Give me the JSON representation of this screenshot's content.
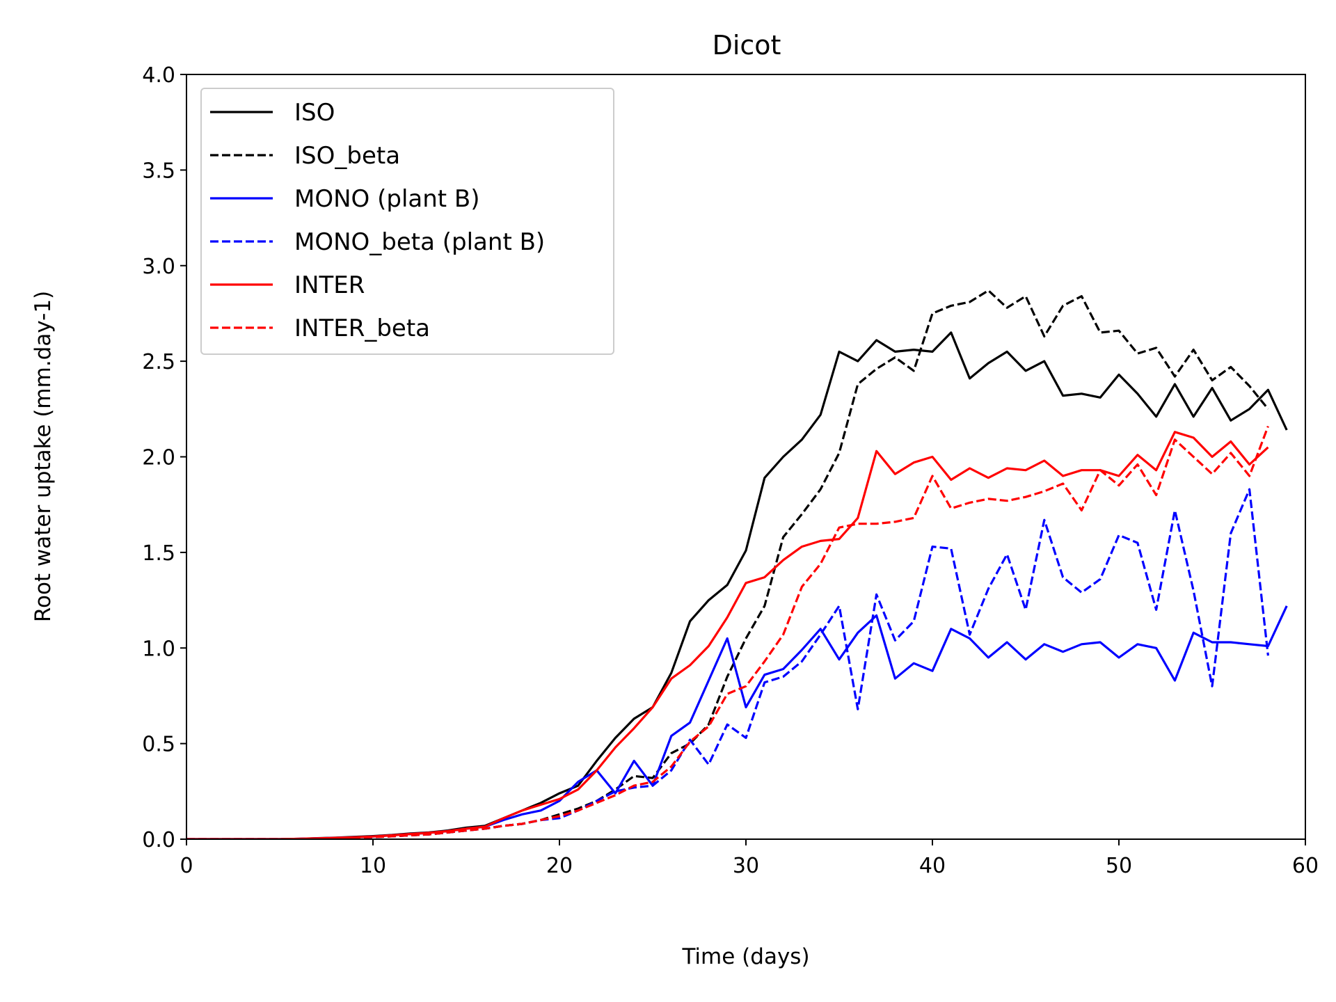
{
  "chart_data": {
    "type": "line",
    "title": "Dicot",
    "xlabel": "Time (days)",
    "ylabel": "Root water uptake (mm.day-1)",
    "xlim": [
      0,
      60
    ],
    "ylim": [
      0,
      4.0
    ],
    "xticks": [
      0,
      10,
      20,
      30,
      40,
      50,
      60
    ],
    "xtick_labels": [
      "0",
      "10",
      "20",
      "30",
      "40",
      "50",
      "60"
    ],
    "yticks": [
      0,
      0.5,
      1.0,
      1.5,
      2.0,
      2.5,
      3.0,
      3.5,
      4.0
    ],
    "ytick_labels": [
      "0.0",
      "0.5",
      "1.0",
      "1.5",
      "2.0",
      "2.5",
      "3.0",
      "3.5",
      "4.0"
    ],
    "grid": false,
    "legend_position": "upper-left",
    "series": [
      {
        "name": "ISO",
        "color": "#000000",
        "dashed": false,
        "x": [
          0,
          5,
          6,
          7,
          8,
          9,
          10,
          11,
          12,
          13,
          14,
          15,
          16,
          17,
          18,
          19,
          20,
          21,
          22,
          23,
          24,
          25,
          26,
          27,
          28,
          29,
          30,
          31,
          32,
          33,
          34,
          35,
          36,
          37,
          38,
          39,
          40,
          41,
          42,
          43,
          44,
          45,
          46,
          47,
          48,
          49,
          50,
          51,
          52,
          53,
          54,
          55,
          56,
          57,
          58,
          59
        ],
        "y": [
          0,
          0,
          0.002,
          0.005,
          0.008,
          0.012,
          0.016,
          0.022,
          0.03,
          0.035,
          0.045,
          0.06,
          0.07,
          0.11,
          0.15,
          0.19,
          0.24,
          0.28,
          0.41,
          0.53,
          0.63,
          0.69,
          0.87,
          1.14,
          1.25,
          1.33,
          1.51,
          1.89,
          2.0,
          2.09,
          2.22,
          2.55,
          2.5,
          2.61,
          2.55,
          2.56,
          2.55,
          2.65,
          2.41,
          2.49,
          2.55,
          2.45,
          2.5,
          2.32,
          2.33,
          2.31,
          2.43,
          2.33,
          2.21,
          2.38,
          2.21,
          2.36,
          2.19,
          2.25,
          2.35,
          2.14
        ]
      },
      {
        "name": "ISO_beta",
        "color": "#000000",
        "dashed": true,
        "x": [
          0,
          5,
          6,
          7,
          8,
          9,
          10,
          11,
          12,
          13,
          14,
          15,
          16,
          17,
          18,
          19,
          20,
          21,
          22,
          23,
          24,
          25,
          26,
          27,
          28,
          29,
          30,
          31,
          32,
          33,
          34,
          35,
          36,
          37,
          38,
          39,
          40,
          41,
          42,
          43,
          44,
          45,
          46,
          47,
          48,
          49,
          50,
          51,
          52,
          53,
          54,
          55,
          56,
          57,
          58
        ],
        "y": [
          0,
          0,
          0.001,
          0.003,
          0.005,
          0.008,
          0.011,
          0.015,
          0.02,
          0.025,
          0.035,
          0.045,
          0.055,
          0.07,
          0.08,
          0.1,
          0.13,
          0.16,
          0.2,
          0.26,
          0.33,
          0.32,
          0.45,
          0.5,
          0.6,
          0.85,
          1.05,
          1.22,
          1.58,
          1.7,
          1.83,
          2.02,
          2.38,
          2.46,
          2.52,
          2.45,
          2.75,
          2.79,
          2.81,
          2.87,
          2.78,
          2.84,
          2.63,
          2.79,
          2.84,
          2.65,
          2.66,
          2.54,
          2.57,
          2.42,
          2.56,
          2.4,
          2.47,
          2.37,
          2.25
        ]
      },
      {
        "name": "MONO (plant B)",
        "color": "#0000ff",
        "dashed": false,
        "x": [
          0,
          5,
          6,
          7,
          8,
          9,
          10,
          11,
          12,
          13,
          14,
          15,
          16,
          17,
          18,
          19,
          20,
          21,
          22,
          23,
          24,
          25,
          26,
          27,
          28,
          29,
          30,
          31,
          32,
          33,
          34,
          35,
          36,
          37,
          38,
          39,
          40,
          41,
          42,
          43,
          44,
          45,
          46,
          47,
          48,
          49,
          50,
          51,
          52,
          53,
          54,
          55,
          56,
          57,
          58,
          59
        ],
        "y": [
          0,
          0,
          0.002,
          0.004,
          0.007,
          0.01,
          0.014,
          0.02,
          0.027,
          0.033,
          0.042,
          0.055,
          0.065,
          0.1,
          0.13,
          0.15,
          0.2,
          0.3,
          0.36,
          0.24,
          0.41,
          0.28,
          0.54,
          0.61,
          0.83,
          1.05,
          0.69,
          0.86,
          0.89,
          0.99,
          1.1,
          0.94,
          1.08,
          1.17,
          0.84,
          0.92,
          0.88,
          1.1,
          1.05,
          0.95,
          1.03,
          0.94,
          1.02,
          0.98,
          1.02,
          1.03,
          0.95,
          1.02,
          1.0,
          0.83,
          1.08,
          1.03,
          1.03,
          1.02,
          1.01,
          1.22
        ]
      },
      {
        "name": "MONO_beta (plant B)",
        "color": "#0000ff",
        "dashed": true,
        "x": [
          0,
          5,
          6,
          7,
          8,
          9,
          10,
          11,
          12,
          13,
          14,
          15,
          16,
          17,
          18,
          19,
          20,
          21,
          22,
          23,
          24,
          25,
          26,
          27,
          28,
          29,
          30,
          31,
          32,
          33,
          34,
          35,
          36,
          37,
          38,
          39,
          40,
          41,
          42,
          43,
          44,
          45,
          46,
          47,
          48,
          49,
          50,
          51,
          52,
          53,
          54,
          55,
          56,
          57,
          58
        ],
        "y": [
          0,
          0,
          0.001,
          0.003,
          0.005,
          0.008,
          0.011,
          0.015,
          0.02,
          0.025,
          0.035,
          0.045,
          0.055,
          0.07,
          0.08,
          0.1,
          0.11,
          0.15,
          0.2,
          0.25,
          0.27,
          0.28,
          0.36,
          0.52,
          0.39,
          0.6,
          0.53,
          0.82,
          0.85,
          0.93,
          1.07,
          1.22,
          0.68,
          1.28,
          1.04,
          1.14,
          1.53,
          1.52,
          1.07,
          1.31,
          1.49,
          1.2,
          1.67,
          1.37,
          1.29,
          1.36,
          1.59,
          1.55,
          1.2,
          1.72,
          1.3,
          0.8,
          1.6,
          1.83,
          0.96
        ]
      },
      {
        "name": "INTER",
        "color": "#ff0000",
        "dashed": false,
        "x": [
          0,
          5,
          6,
          7,
          8,
          9,
          10,
          11,
          12,
          13,
          14,
          15,
          16,
          17,
          18,
          19,
          20,
          21,
          22,
          23,
          24,
          25,
          26,
          27,
          28,
          29,
          30,
          31,
          32,
          33,
          34,
          35,
          36,
          37,
          38,
          39,
          40,
          41,
          42,
          43,
          44,
          45,
          46,
          47,
          48,
          49,
          50,
          51,
          52,
          53,
          54,
          55,
          56,
          57,
          58
        ],
        "y": [
          0,
          0,
          0.002,
          0.004,
          0.007,
          0.01,
          0.014,
          0.02,
          0.027,
          0.033,
          0.042,
          0.055,
          0.065,
          0.11,
          0.15,
          0.18,
          0.21,
          0.26,
          0.36,
          0.48,
          0.58,
          0.69,
          0.84,
          0.91,
          1.01,
          1.16,
          1.34,
          1.37,
          1.46,
          1.53,
          1.56,
          1.57,
          1.68,
          2.03,
          1.91,
          1.97,
          2.0,
          1.88,
          1.94,
          1.89,
          1.94,
          1.93,
          1.98,
          1.9,
          1.93,
          1.93,
          1.9,
          2.01,
          1.93,
          2.13,
          2.1,
          2.0,
          2.08,
          1.96,
          2.05
        ]
      },
      {
        "name": "INTER_beta",
        "color": "#ff0000",
        "dashed": true,
        "x": [
          0,
          5,
          6,
          7,
          8,
          9,
          10,
          11,
          12,
          13,
          14,
          15,
          16,
          17,
          18,
          19,
          20,
          21,
          22,
          23,
          24,
          25,
          26,
          27,
          28,
          29,
          30,
          31,
          32,
          33,
          34,
          35,
          36,
          37,
          38,
          39,
          40,
          41,
          42,
          43,
          44,
          45,
          46,
          47,
          48,
          49,
          50,
          51,
          52,
          53,
          54,
          55,
          56,
          57,
          58
        ],
        "y": [
          0,
          0,
          0.001,
          0.003,
          0.005,
          0.008,
          0.011,
          0.015,
          0.02,
          0.025,
          0.035,
          0.045,
          0.055,
          0.07,
          0.08,
          0.1,
          0.12,
          0.15,
          0.19,
          0.23,
          0.28,
          0.3,
          0.38,
          0.51,
          0.59,
          0.76,
          0.8,
          0.93,
          1.07,
          1.32,
          1.44,
          1.63,
          1.65,
          1.65,
          1.66,
          1.68,
          1.9,
          1.73,
          1.76,
          1.78,
          1.77,
          1.79,
          1.82,
          1.86,
          1.72,
          1.93,
          1.85,
          1.96,
          1.8,
          2.09,
          2.0,
          1.91,
          2.02,
          1.9,
          2.16
        ]
      }
    ]
  }
}
